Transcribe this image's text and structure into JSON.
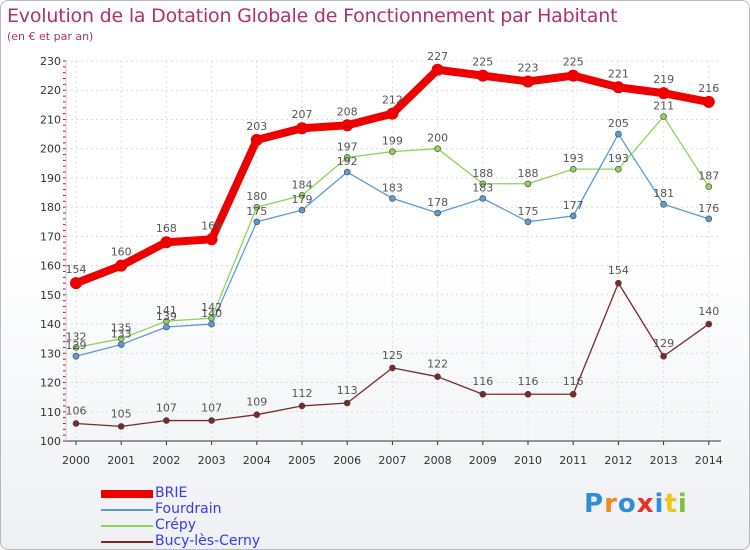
{
  "title": "Evolution de la Dotation Globale de Fonctionnement par Habitant",
  "subtitle": "(en € et par an)",
  "brand": {
    "letters": [
      "P",
      "r",
      "o",
      "x",
      "i",
      "t",
      "i"
    ],
    "colors": [
      "#2e8fd6",
      "#f08a1c",
      "#2e8fd6",
      "#e8302b",
      "#2e8fd6",
      "#f0c419",
      "#7fbf3f"
    ]
  },
  "chart_data": {
    "type": "line",
    "x": [
      "2000",
      "2001",
      "2002",
      "2003",
      "2004",
      "2005",
      "2006",
      "2007",
      "2008",
      "2009",
      "2010",
      "2011",
      "2012",
      "2013",
      "2014"
    ],
    "ylim": [
      100,
      230
    ],
    "yticks": [
      "100",
      "110",
      "120",
      "130",
      "140",
      "150",
      "160",
      "170",
      "180",
      "190",
      "200",
      "210",
      "220",
      "230"
    ],
    "grid": true,
    "legend_position": "bottom-left",
    "series": [
      {
        "name": "BRIE",
        "color": "#ee0000",
        "values": [
          154,
          160,
          168,
          169,
          203,
          207,
          208,
          212,
          227,
          225,
          223,
          225,
          221,
          219,
          216
        ],
        "labels": [
          "154",
          "160",
          "168",
          "169",
          "203",
          "207",
          "208",
          "212",
          "227",
          "225",
          "223",
          "225",
          "221",
          "219",
          "216"
        ]
      },
      {
        "name": "Fourdrain",
        "color": "#5b9bd5",
        "values": [
          129,
          133,
          139,
          140,
          175,
          179,
          192,
          183,
          178,
          183,
          175,
          177,
          205,
          181,
          176
        ],
        "labels": [
          "129",
          "133",
          "139",
          "140",
          "175",
          "179",
          "192",
          "183",
          "178",
          "183",
          "175",
          "177",
          "205",
          "181",
          "176"
        ]
      },
      {
        "name": "Crépy",
        "color": "#8fd25a",
        "values": [
          132,
          135,
          141,
          142,
          180,
          184,
          197,
          199,
          200,
          188,
          188,
          193,
          193,
          211,
          187
        ],
        "labels": [
          "132",
          "135",
          "141",
          "142",
          "180",
          "184",
          "197",
          "199",
          "200",
          "188",
          "188",
          "193",
          "193",
          "211",
          "187"
        ]
      },
      {
        "name": "Bucy-lès-Cerny",
        "color": "#7b2a2a",
        "values": [
          106,
          105,
          107,
          107,
          109,
          112,
          113,
          125,
          122,
          116,
          116,
          116,
          154,
          129,
          140
        ],
        "labels": [
          "106",
          "105",
          "107",
          "107",
          "109",
          "112",
          "113",
          "125",
          "122",
          "116",
          "116",
          "116",
          "154",
          "129",
          "140"
        ]
      }
    ]
  }
}
